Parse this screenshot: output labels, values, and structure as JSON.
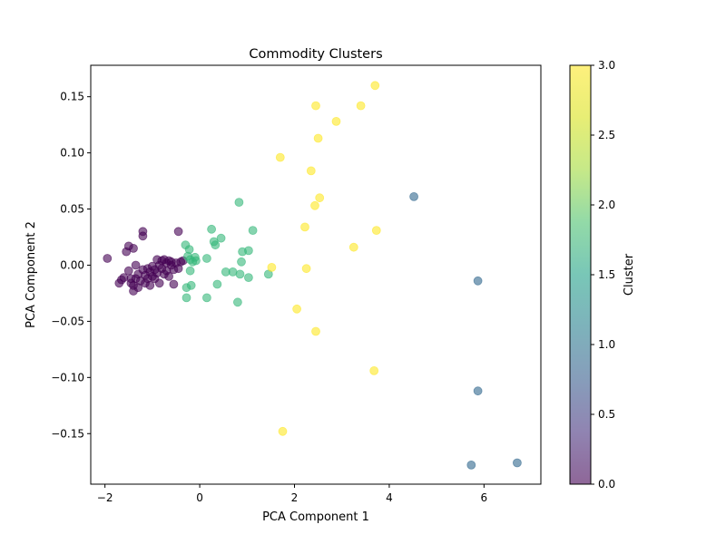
{
  "chart_data": {
    "type": "scatter",
    "title": "Commodity Clusters",
    "xlabel": "PCA Component 1",
    "ylabel": "PCA Component 2",
    "xlim": [
      -2.3,
      7.2
    ],
    "ylim": [
      -0.195,
      0.178
    ],
    "xticks": [
      -2,
      0,
      2,
      4,
      6
    ],
    "yticks": [
      -0.15,
      -0.1,
      -0.05,
      0.0,
      0.05,
      0.1,
      0.15
    ],
    "grid": false,
    "colorbar": {
      "label": "Cluster",
      "range": [
        0.0,
        3.0
      ],
      "ticks": [
        0.0,
        0.5,
        1.0,
        1.5,
        2.0,
        2.5,
        3.0
      ],
      "colormap": "viridis"
    },
    "marker_alpha": 0.6,
    "points": [
      {
        "x": -1.95,
        "y": 0.006,
        "c": 0
      },
      {
        "x": -1.7,
        "y": -0.016,
        "c": 0
      },
      {
        "x": -1.65,
        "y": -0.013,
        "c": 0
      },
      {
        "x": -1.6,
        "y": -0.011,
        "c": 0
      },
      {
        "x": -1.55,
        "y": 0.012,
        "c": 0
      },
      {
        "x": -1.5,
        "y": 0.017,
        "c": 0
      },
      {
        "x": -1.5,
        "y": -0.005,
        "c": 0
      },
      {
        "x": -1.45,
        "y": -0.012,
        "c": 0
      },
      {
        "x": -1.45,
        "y": -0.016,
        "c": 0
      },
      {
        "x": -1.4,
        "y": 0.015,
        "c": 0
      },
      {
        "x": -1.4,
        "y": -0.018,
        "c": 0
      },
      {
        "x": -1.4,
        "y": -0.023,
        "c": 0
      },
      {
        "x": -1.35,
        "y": 0.0,
        "c": 0
      },
      {
        "x": -1.35,
        "y": -0.012,
        "c": 0
      },
      {
        "x": -1.3,
        "y": -0.02,
        "c": 0
      },
      {
        "x": -1.3,
        "y": -0.008,
        "c": 0
      },
      {
        "x": -1.25,
        "y": -0.014,
        "c": 0
      },
      {
        "x": -1.2,
        "y": 0.03,
        "c": 0
      },
      {
        "x": -1.2,
        "y": 0.026,
        "c": 0
      },
      {
        "x": -1.2,
        "y": -0.004,
        "c": 0
      },
      {
        "x": -1.15,
        "y": -0.009,
        "c": 0
      },
      {
        "x": -1.15,
        "y": -0.016,
        "c": 0
      },
      {
        "x": -1.1,
        "y": -0.003,
        "c": 0
      },
      {
        "x": -1.1,
        "y": -0.012,
        "c": 0
      },
      {
        "x": -1.05,
        "y": -0.006,
        "c": 0
      },
      {
        "x": -1.05,
        "y": -0.018,
        "c": 0
      },
      {
        "x": -1.0,
        "y": -0.001,
        "c": 0
      },
      {
        "x": -1.0,
        "y": -0.01,
        "c": 0
      },
      {
        "x": -0.95,
        "y": -0.004,
        "c": 0
      },
      {
        "x": -0.95,
        "y": -0.012,
        "c": 0
      },
      {
        "x": -0.9,
        "y": 0.005,
        "c": 0
      },
      {
        "x": -0.9,
        "y": -0.007,
        "c": 0
      },
      {
        "x": -0.85,
        "y": 0.0,
        "c": 0
      },
      {
        "x": -0.85,
        "y": -0.016,
        "c": 0
      },
      {
        "x": -0.8,
        "y": 0.004,
        "c": 0
      },
      {
        "x": -0.8,
        "y": -0.003,
        "c": 0
      },
      {
        "x": -0.75,
        "y": 0.005,
        "c": 0
      },
      {
        "x": -0.75,
        "y": -0.008,
        "c": 0
      },
      {
        "x": -0.7,
        "y": 0.002,
        "c": 0
      },
      {
        "x": -0.7,
        "y": -0.005,
        "c": 0
      },
      {
        "x": -0.65,
        "y": 0.004,
        "c": 0
      },
      {
        "x": -0.65,
        "y": -0.01,
        "c": 0
      },
      {
        "x": -0.6,
        "y": 0.0,
        "c": 0
      },
      {
        "x": -0.6,
        "y": 0.003,
        "c": 0
      },
      {
        "x": -0.55,
        "y": -0.004,
        "c": 0
      },
      {
        "x": -0.55,
        "y": -0.017,
        "c": 0
      },
      {
        "x": -0.5,
        "y": 0.002,
        "c": 0
      },
      {
        "x": -0.45,
        "y": 0.03,
        "c": 0
      },
      {
        "x": -0.45,
        "y": -0.003,
        "c": 0
      },
      {
        "x": -0.4,
        "y": 0.003,
        "c": 0
      },
      {
        "x": -0.35,
        "y": 0.004,
        "c": 0
      },
      {
        "x": -0.3,
        "y": 0.018,
        "c": 2
      },
      {
        "x": -0.28,
        "y": -0.02,
        "c": 2
      },
      {
        "x": -0.28,
        "y": -0.029,
        "c": 2
      },
      {
        "x": -0.25,
        "y": 0.008,
        "c": 2
      },
      {
        "x": -0.22,
        "y": 0.014,
        "c": 2
      },
      {
        "x": -0.2,
        "y": -0.005,
        "c": 2
      },
      {
        "x": -0.2,
        "y": 0.005,
        "c": 2
      },
      {
        "x": -0.18,
        "y": -0.018,
        "c": 2
      },
      {
        "x": -0.15,
        "y": 0.003,
        "c": 2
      },
      {
        "x": -0.1,
        "y": 0.007,
        "c": 2
      },
      {
        "x": -0.08,
        "y": 0.004,
        "c": 2
      },
      {
        "x": 0.15,
        "y": 0.006,
        "c": 2
      },
      {
        "x": 0.15,
        "y": -0.029,
        "c": 2
      },
      {
        "x": 0.25,
        "y": 0.032,
        "c": 2
      },
      {
        "x": 0.3,
        "y": 0.021,
        "c": 2
      },
      {
        "x": 0.33,
        "y": 0.018,
        "c": 2
      },
      {
        "x": 0.37,
        "y": -0.017,
        "c": 2
      },
      {
        "x": 0.45,
        "y": 0.024,
        "c": 2
      },
      {
        "x": 0.55,
        "y": -0.006,
        "c": 2
      },
      {
        "x": 0.7,
        "y": -0.006,
        "c": 2
      },
      {
        "x": 0.8,
        "y": -0.033,
        "c": 2
      },
      {
        "x": 0.83,
        "y": 0.056,
        "c": 2
      },
      {
        "x": 0.85,
        "y": -0.008,
        "c": 2
      },
      {
        "x": 0.88,
        "y": 0.003,
        "c": 2
      },
      {
        "x": 0.9,
        "y": 0.012,
        "c": 2
      },
      {
        "x": 1.03,
        "y": -0.011,
        "c": 2
      },
      {
        "x": 1.03,
        "y": 0.013,
        "c": 2
      },
      {
        "x": 1.12,
        "y": 0.031,
        "c": 2
      },
      {
        "x": 1.45,
        "y": -0.008,
        "c": 2
      },
      {
        "x": 1.52,
        "y": -0.002,
        "c": 3
      },
      {
        "x": 1.7,
        "y": 0.096,
        "c": 3
      },
      {
        "x": 1.75,
        "y": -0.148,
        "c": 3
      },
      {
        "x": 2.05,
        "y": -0.039,
        "c": 3
      },
      {
        "x": 2.22,
        "y": 0.034,
        "c": 3
      },
      {
        "x": 2.25,
        "y": -0.003,
        "c": 3
      },
      {
        "x": 2.35,
        "y": 0.084,
        "c": 3
      },
      {
        "x": 2.43,
        "y": 0.053,
        "c": 3
      },
      {
        "x": 2.45,
        "y": 0.142,
        "c": 3
      },
      {
        "x": 2.45,
        "y": -0.059,
        "c": 3
      },
      {
        "x": 2.5,
        "y": 0.113,
        "c": 3
      },
      {
        "x": 2.53,
        "y": 0.06,
        "c": 3
      },
      {
        "x": 2.88,
        "y": 0.128,
        "c": 3
      },
      {
        "x": 3.25,
        "y": 0.016,
        "c": 3
      },
      {
        "x": 3.4,
        "y": 0.142,
        "c": 3
      },
      {
        "x": 3.68,
        "y": -0.094,
        "c": 3
      },
      {
        "x": 3.7,
        "y": 0.16,
        "c": 3
      },
      {
        "x": 3.73,
        "y": 0.031,
        "c": 3
      },
      {
        "x": 4.52,
        "y": 0.061,
        "c": 1
      },
      {
        "x": 5.73,
        "y": -0.178,
        "c": 1
      },
      {
        "x": 5.87,
        "y": -0.014,
        "c": 1
      },
      {
        "x": 5.87,
        "y": -0.112,
        "c": 1
      },
      {
        "x": 6.7,
        "y": -0.176,
        "c": 1
      }
    ]
  }
}
